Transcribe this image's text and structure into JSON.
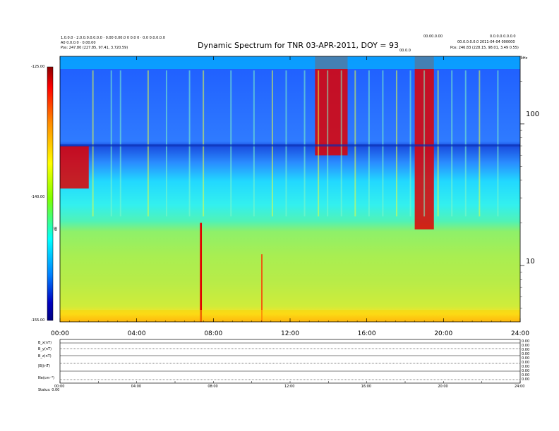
{
  "header": {
    "title": "Dynamic Spectrum for TNR 03-APR-2011, DOY = 93",
    "left_line1": "1.0.0.0 · 2.0.0.0.0.0.0.0 · 0.00 0.00.0 0 0.0 0 · 0.0 0.0.0.0.0",
    "left_line2": "A0 0.0.0.0 · 0.00.00",
    "left_line3": "Pos:   247.80 (227.85, 97.41, 3.720.59)",
    "right_top_a": "00.00.0.00",
    "right_top_b": "0.0.0.0.0.0.0.0",
    "right_line2": "00.0.0.0.0.0  2011-04-04 000000",
    "right_line3": "Pos:   246.83 (228.15, 98.01, 3.49 0.55)",
    "right_small": "00.0.0",
    "freq_axis_unit": "kHz"
  },
  "colorbar": {
    "tick_labels": [
      "-125.00",
      "-140.00",
      "-155.00"
    ],
    "axis_label": "dB",
    "colors": [
      "#8b0000",
      "#ff0000",
      "#ff8c00",
      "#ffff00",
      "#7fff00",
      "#00ffff",
      "#0080ff",
      "#0000c0",
      "#00007f"
    ]
  },
  "bottom_panel": {
    "row_labels": [
      "B_x(nT)",
      "B_y(nT)",
      "B_z(nT)",
      "|B|(nT)",
      "Ne(cm⁻³)"
    ],
    "right_labels": [
      "0.00",
      "0.00",
      "0.00",
      "0.00",
      "0.00",
      "0.00",
      "0.00",
      "0.00",
      "0.00",
      "0.00"
    ],
    "footer_label": "Status: 0.00",
    "time_labels": [
      "00:00",
      "04:00",
      "08:00",
      "12:00",
      "16:00",
      "20:00",
      "24:00"
    ]
  },
  "chart_data": {
    "type": "heatmap",
    "title": "Dynamic Spectrum for TNR 03-APR-2011, DOY = 93",
    "x_tick_labels": [
      "00:00",
      "04:00",
      "08:00",
      "12:00",
      "16:00",
      "20:00",
      "24:00"
    ],
    "x_ticks_hours": [
      0,
      4,
      8,
      12,
      16,
      20,
      24
    ],
    "xlim_hours": [
      0,
      24
    ],
    "y_tick_labels": [
      "100",
      "10"
    ],
    "y_ticks_khz": [
      100,
      10
    ],
    "ylim_khz": [
      4,
      300
    ],
    "y_scale": "log",
    "color_scale_db": [
      -155,
      -125
    ],
    "colorbar_ticks_db": [
      -125,
      -140,
      -155
    ],
    "features": [
      {
        "name": "intense burst",
        "start_hour": 13.3,
        "end_hour": 15.0,
        "freq_khz_min": 60,
        "freq_khz_max": 300,
        "level_db": -127
      },
      {
        "name": "intense burst",
        "start_hour": 18.5,
        "end_hour": 19.5,
        "freq_khz_min": 18,
        "freq_khz_max": 300,
        "level_db": -125
      },
      {
        "name": "spike",
        "start_hour": 7.3,
        "end_hour": 7.4,
        "freq_khz_min": 4,
        "freq_khz_max": 20,
        "level_db": -125
      },
      {
        "name": "spike",
        "start_hour": 10.5,
        "end_hour": 10.55,
        "freq_khz_min": 4,
        "freq_khz_max": 12,
        "level_db": -128
      },
      {
        "name": "low-frequency emission",
        "start_hour": 0.0,
        "end_hour": 1.5,
        "freq_khz_min": 35,
        "freq_khz_max": 70,
        "level_db": -126
      }
    ]
  }
}
